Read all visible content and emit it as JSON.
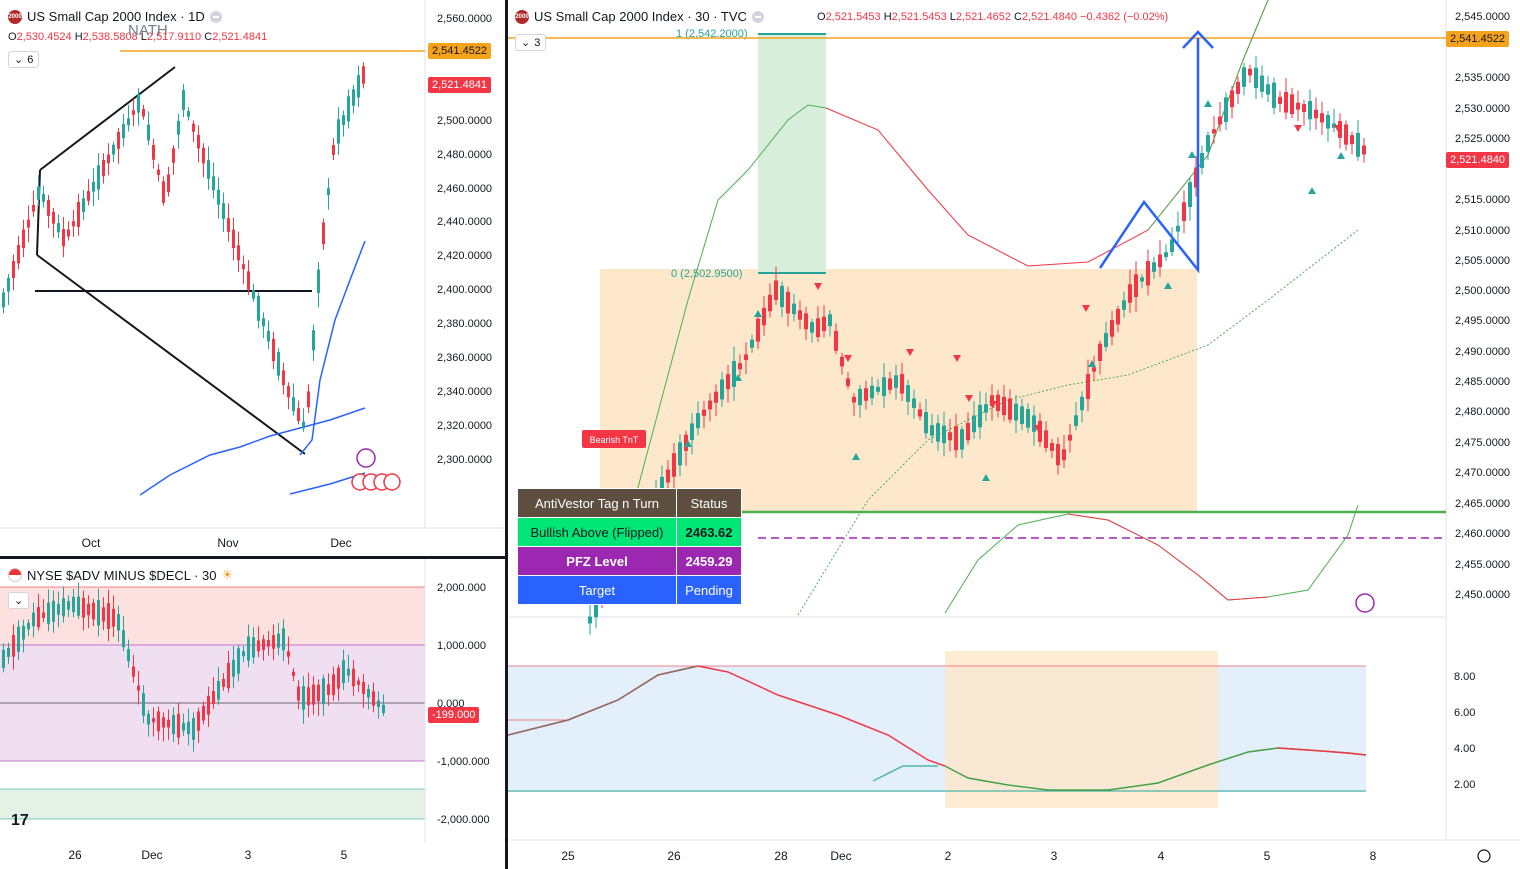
{
  "pane_left_top": {
    "title": "US Small Cap 2000 Index · 1D",
    "logo_text": "2000",
    "ohlc": {
      "o": "2,530.4524",
      "h": "2,538.5808",
      "l": "2,517.9110",
      "c": "2,521.4841"
    },
    "ohlc_labels": {
      "o": "O",
      "h": "H",
      "l": "L",
      "c": "C"
    },
    "collapse_count": "6",
    "nath_label": "NATH",
    "price_ticks": [
      "2,560.0000",
      "2,541.4522",
      "2,521.4841",
      "2,500.0000",
      "2,480.0000",
      "2,460.0000",
      "2,440.0000",
      "2,420.0000",
      "2,400.0000",
      "2,380.0000",
      "2,360.0000",
      "2,340.0000",
      "2,320.0000",
      "2,300.0000"
    ],
    "tag_nath": "2,541.4522",
    "tag_last": "2,521.4841",
    "time_labels": [
      "Oct",
      "Nov",
      "Dec"
    ]
  },
  "pane_left_bottom": {
    "title": "NYSE $ADV MINUS $DECL · 30",
    "price_ticks": [
      "2,000.000",
      "1,000.000",
      "0.000",
      "-1,000.000",
      "-2,000.000"
    ],
    "tag_last": "-199.000",
    "time_labels": [
      "26",
      "Dec",
      "3",
      "5"
    ]
  },
  "pane_right": {
    "title": "US Small Cap 2000 Index · 30 · TVC",
    "logo_text": "2000",
    "ohlc": {
      "o": "2,521.5453",
      "h": "2,521.5453",
      "l": "2,521.4652",
      "c": "2,521.4840",
      "chg": "−0.4362 (−0.02%)"
    },
    "ohlc_labels": {
      "o": "O",
      "h": "H",
      "l": "L",
      "c": "C"
    },
    "collapse_count": "3",
    "price_ticks": [
      "2,545.0000",
      "2,535.0000",
      "2,530.0000",
      "2,525.0000",
      "2,515.0000",
      "2,510.0000",
      "2,505.0000",
      "2,500.0000",
      "2,495.0000",
      "2,490.0000",
      "2,485.0000",
      "2,480.0000",
      "2,475.0000",
      "2,470.0000",
      "2,465.0000",
      "2,460.0000",
      "2,455.0000",
      "2,450.0000"
    ],
    "tag_nath": "2,541.4522",
    "tag_last": "2,521.4840",
    "fib_1": "1 (2,542.2000)",
    "fib_0": "0 (2,502.9500)",
    "bearish_label": "Bearish TnT",
    "table": {
      "header": [
        "AntiVestor Tag n Turn",
        "Status"
      ],
      "rows": [
        [
          "Bullish Above (Flipped)",
          "2463.62"
        ],
        [
          "PFZ Level",
          "2459.29"
        ],
        [
          "Target",
          "Pending"
        ]
      ]
    },
    "osc_ticks": [
      "8.00",
      "6.00",
      "4.00",
      "2.00"
    ],
    "time_labels": [
      "25",
      "26",
      "28",
      "Dec",
      "2",
      "3",
      "4",
      "5",
      "8"
    ]
  },
  "colors": {
    "up": "#26a69a",
    "down": "#f23645",
    "nath_line": "#f7a21b",
    "ma_blue": "#2962ff",
    "pattern_blue": "#2962ff",
    "zone_orange": "#fde8cc",
    "zone_green": "#d7eedb",
    "table_header": "#5d4e3f",
    "table_green": "#00e676",
    "table_purple": "#9c27b0",
    "table_blue": "#2962ff"
  }
}
